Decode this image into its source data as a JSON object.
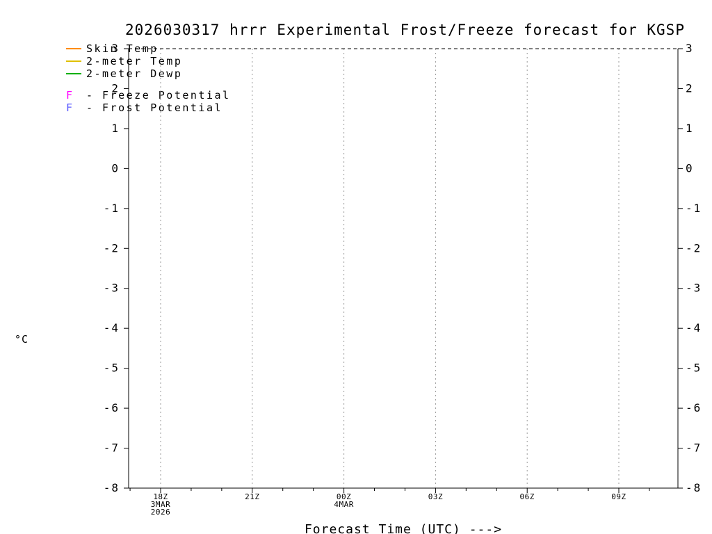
{
  "title": "2026030317 hrrr Experimental Frost/Freeze forecast for KGSP",
  "legend": {
    "items": [
      {
        "type": "line",
        "label": "Skin Temp",
        "color": "#ff8c00",
        "name": "skin-temp"
      },
      {
        "type": "line",
        "label": "2-meter Temp",
        "color": "#e0c000",
        "name": "2-meter-temp"
      },
      {
        "type": "line",
        "label": "2-meter Dewp",
        "color": "#00b000",
        "name": "2-meter-dewp"
      },
      {
        "type": "flag",
        "symbol": "F",
        "label": "- Freeze Potential",
        "color": "#ff00ff",
        "name": "freeze-potential"
      },
      {
        "type": "flag",
        "symbol": "F",
        "label": "- Frost Potential",
        "color": "#5a5aff",
        "name": "frost-potential"
      }
    ]
  },
  "chart_data": {
    "type": "line",
    "title": "2026030317 hrrr Experimental Frost/Freeze forecast for KGSP",
    "xlabel": "Forecast Time (UTC) --->",
    "ylabel": "°C",
    "ylim": [
      -8,
      3
    ],
    "yticks": [
      3,
      2,
      1,
      0,
      -1,
      -2,
      -3,
      -4,
      -5,
      -6,
      -7,
      -8
    ],
    "xticks": [
      {
        "label": "18Z",
        "hour_offset": 0,
        "sublabels": [
          "3MAR",
          "2026"
        ]
      },
      {
        "label": "21Z",
        "hour_offset": 3,
        "sublabels": []
      },
      {
        "label": "00Z",
        "hour_offset": 6,
        "sublabels": [
          "4MAR"
        ]
      },
      {
        "label": "03Z",
        "hour_offset": 9,
        "sublabels": []
      },
      {
        "label": "06Z",
        "hour_offset": 12,
        "sublabels": []
      },
      {
        "label": "09Z",
        "hour_offset": 15,
        "sublabels": []
      }
    ],
    "grid": {
      "vertical_dashed_at_major_ticks": true,
      "top_boundary_dashed": true,
      "axis_color": "#000000",
      "gridline_color": "#999999"
    },
    "series": [
      {
        "name": "Skin Temp",
        "color": "#ff8c00",
        "x": [],
        "y": []
      },
      {
        "name": "2-meter Temp",
        "color": "#e0c000",
        "x": [],
        "y": []
      },
      {
        "name": "2-meter Dewp",
        "color": "#00b000",
        "x": [],
        "y": []
      }
    ],
    "freeze_potential_markers": [],
    "frost_potential_markers": []
  }
}
